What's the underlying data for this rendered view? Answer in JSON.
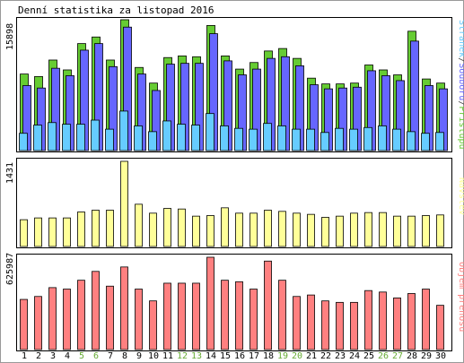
{
  "title": "Denní statistika za listopad 2016",
  "chart_data": [
    {
      "type": "bar",
      "name": "hits",
      "ymax_label": "15898",
      "ylim": [
        0,
        15898
      ],
      "categories": [
        "1",
        "2",
        "3",
        "4",
        "5",
        "6",
        "7",
        "8",
        "9",
        "10",
        "11",
        "12",
        "13",
        "14",
        "15",
        "16",
        "17",
        "18",
        "19",
        "20",
        "21",
        "22",
        "23",
        "24",
        "25",
        "26",
        "27",
        "28",
        "29",
        "30"
      ],
      "weekend_days": [
        5,
        6,
        12,
        13,
        19,
        20,
        26,
        27
      ],
      "legend": [
        {
          "label": "Stránek",
          "color": "#66ccff"
        },
        {
          "label": "/",
          "color": "#444444"
        },
        {
          "label": "Souborů",
          "color": "#6666ff"
        },
        {
          "label": "/",
          "color": "#444444"
        },
        {
          "label": "Přístupů",
          "color": "#66cc33"
        }
      ],
      "series": [
        {
          "name": "Přístupů",
          "color": "#66cc33",
          "values": [
            9300,
            9000,
            11000,
            9800,
            13000,
            13800,
            11000,
            15898,
            10100,
            8200,
            11300,
            11500,
            11400,
            15200,
            11500,
            9900,
            10700,
            12100,
            12400,
            11200,
            8800,
            8100,
            8100,
            8200,
            10400,
            9800,
            9200,
            14500,
            8700,
            8200
          ]
        },
        {
          "name": "Souborů",
          "color": "#6666ff",
          "values": [
            7900,
            7600,
            10000,
            9100,
            12200,
            13000,
            10200,
            15000,
            9300,
            7300,
            10500,
            10600,
            10600,
            14200,
            10900,
            9200,
            9900,
            11200,
            11400,
            10300,
            8000,
            7500,
            7600,
            7700,
            9700,
            9100,
            8500,
            13300,
            7900,
            7500
          ]
        },
        {
          "name": "Stránek",
          "color": "#66ccff",
          "values": [
            2100,
            3100,
            3400,
            3200,
            3200,
            3700,
            2600,
            4800,
            3000,
            2300,
            3600,
            3200,
            3100,
            4500,
            3000,
            2700,
            2600,
            3300,
            3000,
            2600,
            2600,
            2200,
            2700,
            2600,
            2800,
            3000,
            2600,
            2300,
            2100,
            2200
          ]
        }
      ]
    },
    {
      "type": "bar",
      "name": "visits",
      "ymax_label": "1431",
      "ylim": [
        0,
        1431
      ],
      "legend": [
        {
          "label": "Návštěv",
          "color": "#ffff99"
        }
      ],
      "series": [
        {
          "name": "Návštěv",
          "color": "#ffff99",
          "values": [
            450,
            480,
            480,
            480,
            580,
            610,
            610,
            1431,
            710,
            560,
            640,
            630,
            510,
            520,
            650,
            560,
            560,
            610,
            590,
            560,
            540,
            490,
            510,
            560,
            570,
            570,
            510,
            510,
            520,
            530
          ]
        }
      ]
    },
    {
      "type": "bar",
      "name": "bandwidth",
      "ymax_label": "625987",
      "ylim": [
        0,
        625987
      ],
      "legend": [
        {
          "label": "Objem přenosu",
          "color": "#ff8080"
        }
      ],
      "series": [
        {
          "name": "Objem přenosu",
          "color": "#ff8080",
          "values": [
            340000,
            360000,
            420000,
            410000,
            470000,
            530000,
            430000,
            560000,
            410000,
            330000,
            450000,
            450000,
            450000,
            625987,
            470000,
            460000,
            410000,
            600000,
            470000,
            360000,
            370000,
            330000,
            320000,
            320000,
            400000,
            390000,
            350000,
            380000,
            410000,
            300000
          ]
        }
      ]
    }
  ]
}
